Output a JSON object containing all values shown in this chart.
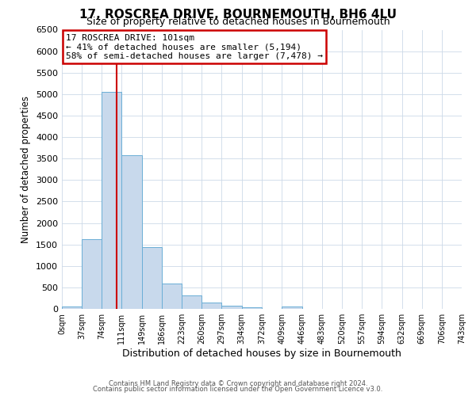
{
  "title": "17, ROSCREA DRIVE, BOURNEMOUTH, BH6 4LU",
  "subtitle": "Size of property relative to detached houses in Bournemouth",
  "xlabel": "Distribution of detached houses by size in Bournemouth",
  "ylabel": "Number of detached properties",
  "bar_color": "#c8d9ec",
  "bar_edge_color": "#6aaed6",
  "bin_edges": [
    0,
    37,
    74,
    111,
    149,
    186,
    223,
    260,
    297,
    334,
    372,
    409,
    446,
    483,
    520,
    557,
    594,
    632,
    669,
    706,
    743
  ],
  "bar_heights": [
    60,
    1620,
    5050,
    3580,
    1430,
    590,
    310,
    150,
    80,
    30,
    0,
    60,
    0,
    0,
    0,
    0,
    0,
    0,
    0,
    0
  ],
  "tick_labels": [
    "0sqm",
    "37sqm",
    "74sqm",
    "111sqm",
    "149sqm",
    "186sqm",
    "223sqm",
    "260sqm",
    "297sqm",
    "334sqm",
    "372sqm",
    "409sqm",
    "446sqm",
    "483sqm",
    "520sqm",
    "557sqm",
    "594sqm",
    "632sqm",
    "669sqm",
    "706sqm",
    "743sqm"
  ],
  "ylim": [
    0,
    6500
  ],
  "yticks": [
    0,
    500,
    1000,
    1500,
    2000,
    2500,
    3000,
    3500,
    4000,
    4500,
    5000,
    5500,
    6000,
    6500
  ],
  "vline_x": 101,
  "vline_color": "#cc0000",
  "annotation_title": "17 ROSCREA DRIVE: 101sqm",
  "annotation_line1": "← 41% of detached houses are smaller (5,194)",
  "annotation_line2": "58% of semi-detached houses are larger (7,478) →",
  "annotation_box_color": "#ffffff",
  "annotation_border_color": "#cc0000",
  "footer_line1": "Contains HM Land Registry data © Crown copyright and database right 2024.",
  "footer_line2": "Contains public sector information licensed under the Open Government Licence v3.0.",
  "background_color": "#ffffff",
  "grid_color": "#ccd9e8"
}
